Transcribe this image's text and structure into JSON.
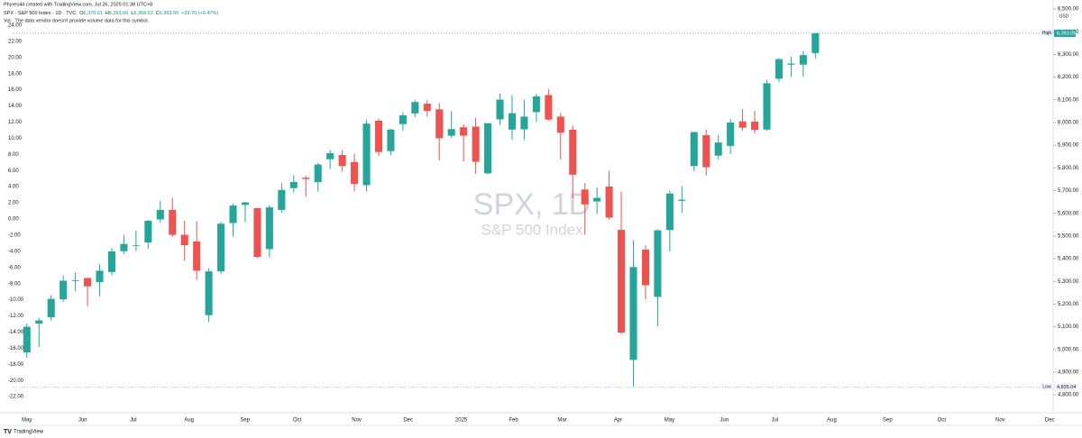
{
  "header": {
    "credit": "Phyres44 created with TradingView.com, Jul 26, 2025 01:38 UTC+8",
    "symbol": "SPX · S&P 500 Index · 1D · TVC",
    "ohlc": [
      {
        "key": "O",
        "value": "6,370.01"
      },
      {
        "key": "H",
        "value": "6,393.66"
      },
      {
        "key": "L",
        "value": "6,368.53"
      },
      {
        "key": "C",
        "value": "6,393.05"
      }
    ],
    "change": "+29.70 (+0.47%)",
    "volume_note": "Vol · The data vendor doesn't provide volume data for this symbol.",
    "currency": "USD"
  },
  "footer": "TradingView",
  "chart_data": {
    "type": "candlestick",
    "watermark": "SPX, 1D",
    "watermark_subtitle": "S&P 500 Index",
    "up_color": "#26a69a",
    "down_color": "#ef5350",
    "grid": false,
    "candles": [
      [
        4987,
        5114,
        4963,
        5100
      ],
      [
        5114,
        5139,
        5011,
        5128
      ],
      [
        5142,
        5239,
        5127,
        5223
      ],
      [
        5221,
        5325,
        5211,
        5303
      ],
      [
        5305,
        5341,
        5256,
        5305
      ],
      [
        5315,
        5315,
        5191,
        5278
      ],
      [
        5297,
        5375,
        5234,
        5347
      ],
      [
        5341,
        5447,
        5327,
        5432
      ],
      [
        5433,
        5505,
        5420,
        5465
      ],
      [
        5459,
        5524,
        5433,
        5460
      ],
      [
        5471,
        5570,
        5443,
        5567
      ],
      [
        5573,
        5655,
        5558,
        5615
      ],
      [
        5615,
        5669,
        5497,
        5505
      ],
      [
        5505,
        5566,
        5390,
        5459
      ],
      [
        5476,
        5566,
        5306,
        5347
      ],
      [
        5151,
        5358,
        5120,
        5344
      ],
      [
        5344,
        5563,
        5331,
        5554
      ],
      [
        5557,
        5643,
        5497,
        5634
      ],
      [
        5637,
        5651,
        5561,
        5648
      ],
      [
        5623,
        5623,
        5402,
        5408
      ],
      [
        5442,
        5636,
        5406,
        5626
      ],
      [
        5615,
        5733,
        5602,
        5703
      ],
      [
        5711,
        5767,
        5692,
        5738
      ],
      [
        5757,
        5765,
        5674,
        5751
      ],
      [
        5737,
        5822,
        5696,
        5815
      ],
      [
        5838,
        5879,
        5795,
        5865
      ],
      [
        5857,
        5878,
        5784,
        5808
      ],
      [
        5826,
        5863,
        5696,
        5729
      ],
      [
        5724,
        6012,
        5696,
        5995
      ],
      [
        6008,
        6018,
        5853,
        5870
      ],
      [
        5874,
        5972,
        5856,
        5969
      ],
      [
        5993,
        6045,
        5964,
        6032
      ],
      [
        6040,
        6099,
        6024,
        6090
      ],
      [
        6083,
        6099,
        6025,
        6051
      ],
      [
        6058,
        6085,
        5833,
        5931
      ],
      [
        5942,
        6050,
        5932,
        5971
      ],
      [
        5979,
        5993,
        5829,
        5942
      ],
      [
        5982,
        6021,
        5774,
        5827
      ],
      [
        5776,
        5996,
        5773,
        5997
      ],
      [
        6014,
        6128,
        5988,
        6101
      ],
      [
        5969,
        6120,
        5923,
        6041
      ],
      [
        5970,
        6101,
        5923,
        6026
      ],
      [
        6046,
        6127,
        6003,
        6115
      ],
      [
        6121,
        6147,
        6008,
        6013
      ],
      [
        6026,
        6043,
        5837,
        5955
      ],
      [
        5968,
        5986,
        5666,
        5770
      ],
      [
        5705,
        5733,
        5505,
        5639
      ],
      [
        5652,
        5715,
        5597,
        5668
      ],
      [
        5718,
        5787,
        5572,
        5581
      ],
      [
        5527,
        5695,
        5069,
        5074
      ],
      [
        4954,
        5481,
        4835.04,
        5363
      ],
      [
        5440,
        5459,
        5220,
        5283
      ],
      [
        5232,
        5529,
        5102,
        5525
      ],
      [
        5526,
        5700,
        5433,
        5687
      ],
      [
        5655,
        5720,
        5603,
        5660
      ],
      [
        5808,
        5959,
        5786,
        5958
      ],
      [
        5944,
        5969,
        5767,
        5803
      ],
      [
        5854,
        5944,
        5837,
        5912
      ],
      [
        5897,
        6016,
        5861,
        6000
      ],
      [
        6005,
        6059,
        5963,
        5977
      ],
      [
        6004,
        6051,
        5952,
        5967
      ],
      [
        5969,
        6187,
        5964,
        6173
      ],
      [
        6193,
        6284,
        6178,
        6279
      ],
      [
        6255,
        6290,
        6201,
        6260
      ],
      [
        6255,
        6315,
        6201,
        6297
      ],
      [
        6306,
        6393.66,
        6281,
        6393.05
      ]
    ],
    "xlim": [
      -1.1,
      84.6
    ],
    "xticks": [
      {
        "value": 0,
        "label": "May"
      },
      {
        "value": 4.6,
        "label": "Jun"
      },
      {
        "value": 8.77,
        "label": "Jul"
      },
      {
        "value": 13.37,
        "label": "Aug"
      },
      {
        "value": 17.98,
        "label": "Sep"
      },
      {
        "value": 22.29,
        "label": "Oct"
      },
      {
        "value": 27.19,
        "label": "Nov"
      },
      {
        "value": 31.43,
        "label": "Dec"
      },
      {
        "value": 35.81,
        "label": "2025"
      },
      {
        "value": 40.12,
        "label": "Feb"
      },
      {
        "value": 44.13,
        "label": "Mar"
      },
      {
        "value": 48.74,
        "label": "Apr"
      },
      {
        "value": 52.97,
        "label": "May"
      },
      {
        "value": 57.5,
        "label": "Jun"
      },
      {
        "value": 61.66,
        "label": "Jul"
      },
      {
        "value": 66.35,
        "label": "Aug"
      },
      {
        "value": 70.95,
        "label": "Sep"
      },
      {
        "value": 75.41,
        "label": "Oct"
      },
      {
        "value": 80.24,
        "label": "Nov"
      },
      {
        "value": 84.32,
        "label": "Dec"
      }
    ],
    "ylim": [
      4733,
      6520
    ],
    "yticks": [
      {
        "value": 4800,
        "label": "4,800.00"
      },
      {
        "value": 4900,
        "label": "4,900.00"
      },
      {
        "value": 5000,
        "label": "5,000.00"
      },
      {
        "value": 5100,
        "label": "5,100.00"
      },
      {
        "value": 5200,
        "label": "5,200.00"
      },
      {
        "value": 5300,
        "label": "5,300.00"
      },
      {
        "value": 5400,
        "label": "5,400.00"
      },
      {
        "value": 5500,
        "label": "5,500.00"
      },
      {
        "value": 5600,
        "label": "5,600.00"
      },
      {
        "value": 5700,
        "label": "5,700.00"
      },
      {
        "value": 5800,
        "label": "5,800.00"
      },
      {
        "value": 5900,
        "label": "5,900.00"
      },
      {
        "value": 6000,
        "label": "6,000.00"
      },
      {
        "value": 6100,
        "label": "6,100.00"
      },
      {
        "value": 6200,
        "label": "6,200.00"
      },
      {
        "value": 6300,
        "label": "6,300.00"
      },
      {
        "value": 6400,
        "label": "6,400.00"
      },
      {
        "value": 6500,
        "label": "6,500.00"
      }
    ],
    "y2lim": [
      -23.66,
      26.56
    ],
    "y2ticks": [
      {
        "value": 24,
        "label": "24.00"
      },
      {
        "value": 22,
        "label": "22.00"
      },
      {
        "value": 20,
        "label": "20.00"
      },
      {
        "value": 18,
        "label": "18.00"
      },
      {
        "value": 16,
        "label": "16.00"
      },
      {
        "value": 14,
        "label": "14.00"
      },
      {
        "value": 12,
        "label": "12.00"
      },
      {
        "value": 10,
        "label": "10.00"
      },
      {
        "value": 8,
        "label": "8.00"
      },
      {
        "value": 6,
        "label": "6.00"
      },
      {
        "value": 4,
        "label": "4.00"
      },
      {
        "value": 2,
        "label": "2.00"
      },
      {
        "value": 0,
        "label": "0.00"
      },
      {
        "value": -2,
        "label": "-2.00"
      },
      {
        "value": -4,
        "label": "-4.00"
      },
      {
        "value": -6,
        "label": "-6.00"
      },
      {
        "value": -8,
        "label": "-8.00"
      },
      {
        "value": -10,
        "label": "-10.00"
      },
      {
        "value": -12,
        "label": "-12.00"
      },
      {
        "value": -14,
        "label": "-14.00"
      },
      {
        "value": -16,
        "label": "-16.00"
      },
      {
        "value": -18,
        "label": "-18.00"
      },
      {
        "value": -20,
        "label": "-20.00"
      },
      {
        "value": -22,
        "label": "-22.00"
      }
    ],
    "high": {
      "text": "High",
      "value": 6393.66,
      "label": "6,393.66"
    },
    "last": {
      "value": 6393.05,
      "label": "6,393.05"
    },
    "low": {
      "text": "Low",
      "value": 4835.04,
      "label": "4,835.04"
    }
  }
}
